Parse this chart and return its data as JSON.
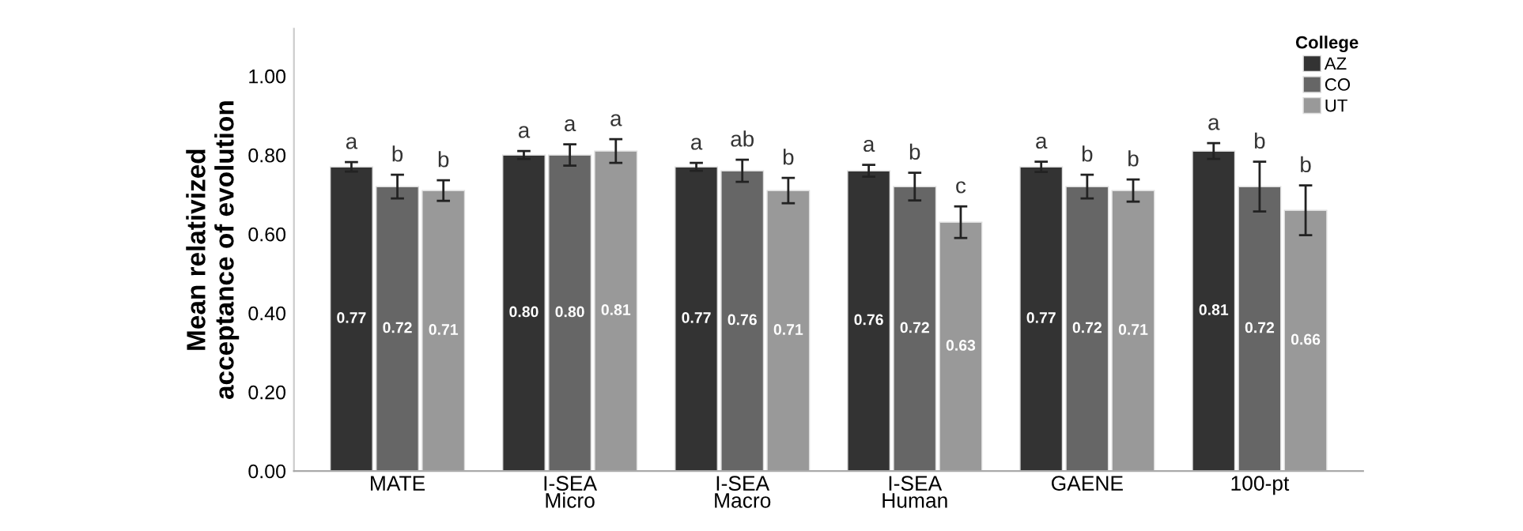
{
  "chart_data": {
    "type": "bar",
    "ylabel": "Mean relativized\nacceptance of evolution",
    "legend_title": "College",
    "legend": "top right",
    "grid": false,
    "categories": [
      "MATE",
      "I-SEA\nMicro",
      "I-SEA\nMacro",
      "I-SEA\nHuman",
      "GAENE",
      "100-pt"
    ],
    "ylim": [
      0,
      1.12
    ],
    "yticks": [
      {
        "value": 0,
        "label": "0.00"
      },
      {
        "value": 0.2,
        "label": "0.20"
      },
      {
        "value": 0.4,
        "label": "0.40"
      },
      {
        "value": 0.6,
        "label": "0.60"
      },
      {
        "value": 0.8,
        "label": "0.80"
      },
      {
        "value": 1.0,
        "label": "1.00"
      }
    ],
    "series": [
      {
        "name": "AZ",
        "color": "#333333",
        "values": [
          0.77,
          0.8,
          0.77,
          0.76,
          0.77,
          0.81
        ],
        "value_labels": [
          "0.77",
          "0.80",
          "0.77",
          "0.76",
          "0.77",
          "0.81"
        ],
        "errors": [
          0.012,
          0.01,
          0.01,
          0.015,
          0.013,
          0.02
        ]
      },
      {
        "name": "CO",
        "color": "#666666",
        "values": [
          0.72,
          0.8,
          0.76,
          0.72,
          0.72,
          0.72
        ],
        "value_labels": [
          "0.72",
          "0.80",
          "0.76",
          "0.72",
          "0.72",
          "0.72"
        ],
        "errors": [
          0.03,
          0.027,
          0.028,
          0.035,
          0.03,
          0.063
        ]
      },
      {
        "name": "UT",
        "color": "#999999",
        "values": [
          0.71,
          0.81,
          0.71,
          0.63,
          0.71,
          0.66
        ],
        "value_labels": [
          "0.71",
          "0.81",
          "0.71",
          "0.63",
          "0.71",
          "0.66"
        ],
        "errors": [
          0.026,
          0.03,
          0.032,
          0.04,
          0.028,
          0.063
        ]
      }
    ],
    "annotations": [
      "a",
      "b",
      "b",
      "a",
      "a",
      "a",
      "a",
      "ab",
      "b",
      "a",
      "b",
      "c",
      "a",
      "b",
      "b",
      "a",
      "b",
      "b"
    ]
  }
}
